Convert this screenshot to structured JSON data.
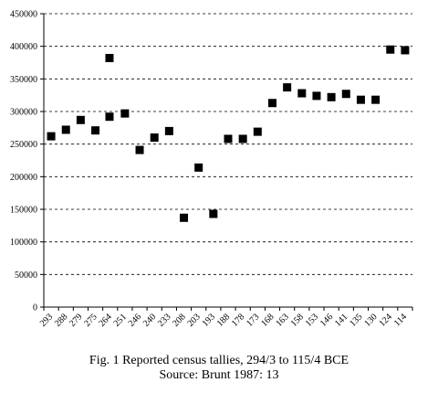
{
  "figure": {
    "caption": "Fig. 1   Reported census tallies, 294/3 to 115/4 BCE",
    "source": "Source: Brunt 1987: 13"
  },
  "chart_data": {
    "type": "scatter",
    "title": "",
    "xlabel": "",
    "ylabel": "",
    "ylim": [
      0,
      450000
    ],
    "yticks": [
      "0",
      "50000",
      "100000",
      "150000",
      "200000",
      "250000",
      "300000",
      "350000",
      "400000",
      "450000"
    ],
    "xticks": [
      "293",
      "288",
      "279",
      "275",
      "264",
      "251",
      "246",
      "240",
      "233",
      "208",
      "203",
      "193",
      "188",
      "178",
      "173",
      "168",
      "163",
      "158",
      "153",
      "146",
      "141",
      "135",
      "130",
      "124",
      "114"
    ],
    "grid": "horizontal dashed",
    "marker": "filled square",
    "marker_color": "#000000",
    "points": [
      {
        "x": 293,
        "y": 262000
      },
      {
        "x": 288,
        "y": 272000
      },
      {
        "x": 279,
        "y": 287000
      },
      {
        "x": 275,
        "y": 271000
      },
      {
        "x": 264.5,
        "y": 382000
      },
      {
        "x": 264.5,
        "y": 292000
      },
      {
        "x": 251,
        "y": 297000
      },
      {
        "x": 246,
        "y": 241000
      },
      {
        "x": 240,
        "y": 260000
      },
      {
        "x": 233,
        "y": 270000
      },
      {
        "x": 208,
        "y": 137000
      },
      {
        "x": 203,
        "y": 214000
      },
      {
        "x": 193,
        "y": 143000
      },
      {
        "x": 188,
        "y": 258000
      },
      {
        "x": 178,
        "y": 258000
      },
      {
        "x": 173,
        "y": 269000
      },
      {
        "x": 168,
        "y": 313000
      },
      {
        "x": 163,
        "y": 337000
      },
      {
        "x": 158,
        "y": 328000
      },
      {
        "x": 153,
        "y": 324000
      },
      {
        "x": 146,
        "y": 322000
      },
      {
        "x": 141,
        "y": 327000
      },
      {
        "x": 135,
        "y": 318000
      },
      {
        "x": 130,
        "y": 318000
      },
      {
        "x": 124,
        "y": 395000
      },
      {
        "x": 114,
        "y": 394000
      }
    ]
  }
}
